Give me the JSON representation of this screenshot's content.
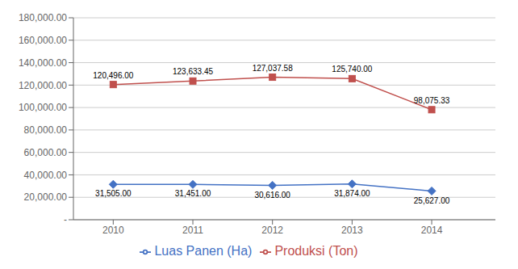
{
  "chart_data": {
    "type": "line",
    "x": [
      2010,
      2011,
      2012,
      2013,
      2014
    ],
    "series": [
      {
        "name": "Luas Panen (Ha)",
        "color": "#4472C4",
        "marker": "diamond",
        "values": [
          31505.0,
          31451.0,
          30616.0,
          31874.0,
          25627.0
        ],
        "value_labels": [
          "31,505.00",
          "31,451.00",
          "30,616.00",
          "31,874.00",
          "25,627.00"
        ]
      },
      {
        "name": "Produksi (Ton)",
        "color": "#C0504D",
        "marker": "square",
        "values": [
          120496.0,
          123633.45,
          127037.58,
          125740.0,
          98075.33
        ],
        "value_labels": [
          "120,496.00",
          "123,633.45",
          "127,037.58",
          "125,740.00",
          "98,075.33"
        ]
      }
    ],
    "xlim": [
      2009.5,
      2014.8
    ],
    "xticks": [
      2010,
      2011,
      2012,
      2013,
      2014
    ],
    "ylim": [
      0,
      180000
    ],
    "yticks": [
      {
        "value": 0,
        "label": "-"
      },
      {
        "value": 20000,
        "label": "20,000.00"
      },
      {
        "value": 40000,
        "label": "40,000.00"
      },
      {
        "value": 60000,
        "label": "60,000.00"
      },
      {
        "value": 80000,
        "label": "80,000.00"
      },
      {
        "value": 100000,
        "label": "100,000.00"
      },
      {
        "value": 120000,
        "label": "120,000.00"
      },
      {
        "value": 140000,
        "label": "140,000.00"
      },
      {
        "value": 160000,
        "label": "160,000.00"
      },
      {
        "value": 180000,
        "label": "180,000.00"
      }
    ],
    "grid": "y",
    "legend": "bottom",
    "data_labels": true
  }
}
